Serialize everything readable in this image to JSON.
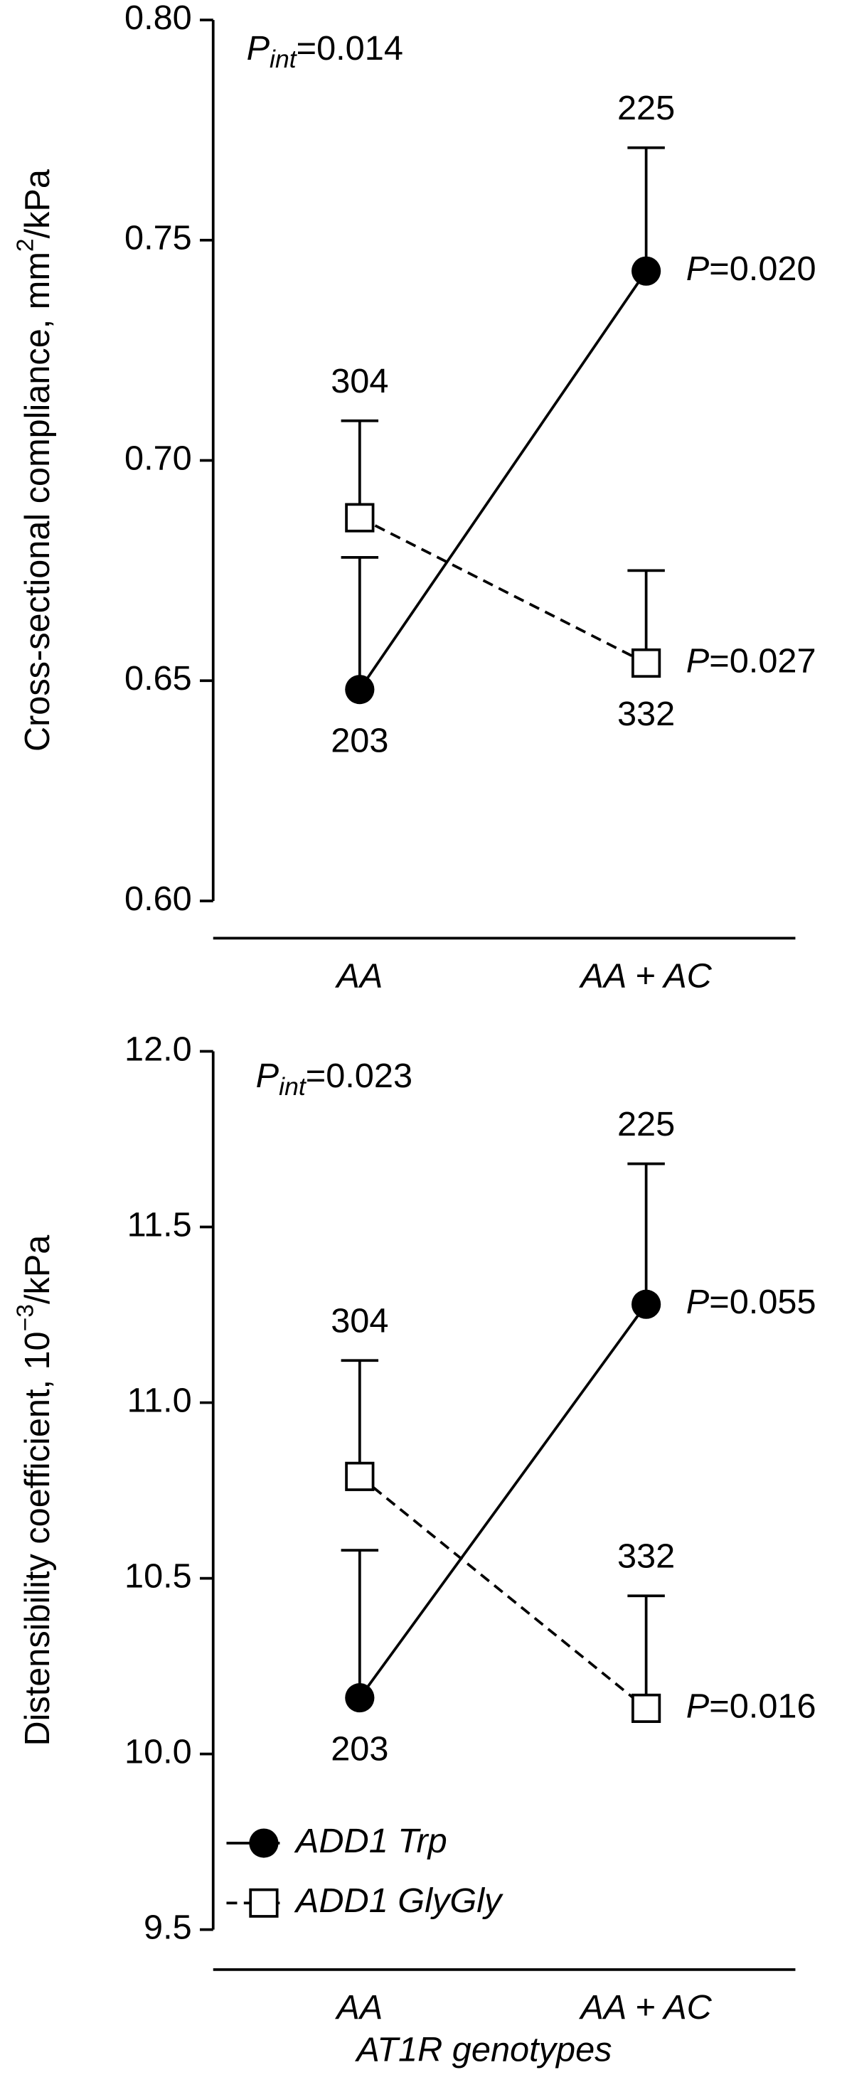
{
  "chart_data": [
    {
      "type": "line",
      "p_interaction": {
        "symbol": "P",
        "subscript": "int",
        "text": "=0.014"
      },
      "ylabel": {
        "text": "Cross-sectional compliance, mm",
        "sup": "2",
        "unit": "/kPa"
      },
      "categories": [
        "AA",
        "AA + AC"
      ],
      "ylim": [
        0.6,
        0.8
      ],
      "yticks": [
        {
          "value": 0.6,
          "label": "0.60"
        },
        0.65,
        {
          "value": 0.7,
          "label": "0.70"
        },
        0.75,
        {
          "value": 0.8,
          "label": "0.80"
        }
      ],
      "series": [
        {
          "name": "ADD1 Trp",
          "color": "#000000",
          "marker": "circle",
          "line_style": "solid",
          "values": [
            0.648,
            0.743
          ],
          "errors": [
            0.03,
            0.028
          ],
          "n": [
            203,
            225
          ],
          "p": [
            null,
            {
              "symbol": "P",
              "text": "=0.020"
            }
          ]
        },
        {
          "name": "ADD1 GlyGly",
          "color": "#000000",
          "marker": "square",
          "line_style": "dashed",
          "values": [
            0.687,
            0.654
          ],
          "errors": [
            0.022,
            0.021
          ],
          "n": [
            304,
            332
          ],
          "p": [
            null,
            {
              "symbol": "P",
              "text": "=0.027"
            }
          ]
        }
      ]
    },
    {
      "type": "line",
      "p_interaction": {
        "symbol": "P",
        "subscript": "int",
        "text": "=0.023"
      },
      "ylabel": {
        "text": "Distensibility coefficient, 10",
        "sup": "−3",
        "unit": "/kPa"
      },
      "xlabel": "AT1R genotypes",
      "categories": [
        "AA",
        "AA + AC"
      ],
      "ylim": [
        9.5,
        12.0
      ],
      "yticks": [
        9.5,
        {
          "value": 10.0,
          "label": "10.0"
        },
        10.5,
        {
          "value": 11.0,
          "label": "11.0"
        },
        11.5,
        {
          "value": 12.0,
          "label": "12.0"
        }
      ],
      "legend": "lower-left",
      "series": [
        {
          "name": "ADD1 Trp",
          "color": "#000000",
          "marker": "circle",
          "line_style": "solid",
          "values": [
            10.16,
            11.28
          ],
          "errors": [
            0.42,
            0.4
          ],
          "n": [
            203,
            225
          ],
          "p": [
            null,
            {
              "symbol": "P",
              "text": "=0.055"
            }
          ]
        },
        {
          "name": "ADD1 GlyGly",
          "color": "#000000",
          "marker": "square",
          "line_style": "dashed",
          "values": [
            10.79,
            10.13
          ],
          "errors": [
            0.33,
            0.32
          ],
          "n": [
            304,
            332
          ],
          "p": [
            null,
            {
              "symbol": "P",
              "text": "=0.016"
            }
          ]
        }
      ]
    }
  ]
}
